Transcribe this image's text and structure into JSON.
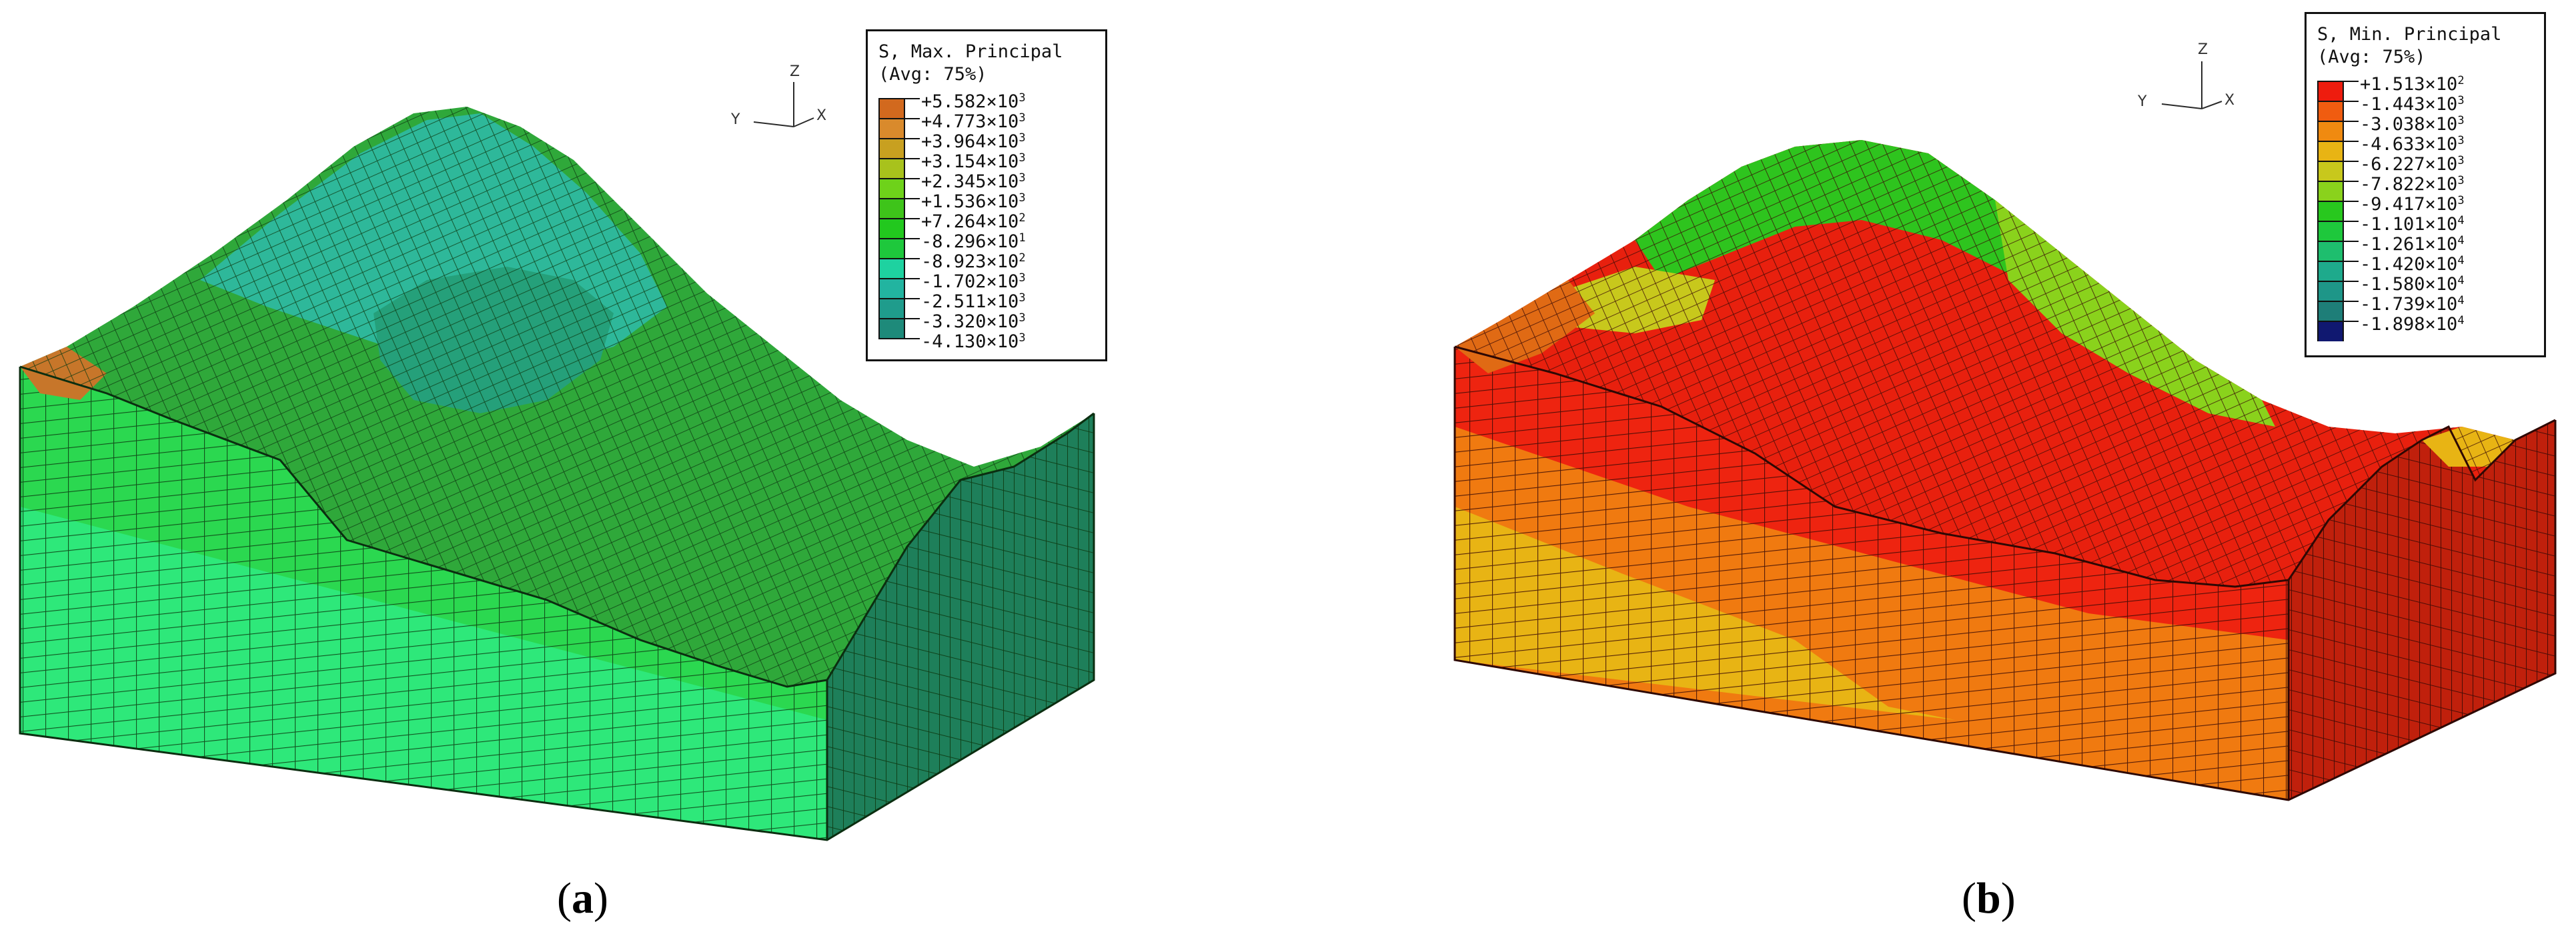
{
  "panels": [
    {
      "caption_letter": "a",
      "legend": {
        "title_line1": "S, Max. Principal",
        "title_line2": "(Avg: 75%)",
        "values": [
          "+5.582",
          "+4.773",
          "+3.964",
          "+3.154",
          "+2.345",
          "+1.536",
          "+7.264",
          "-8.296",
          "-8.923",
          "-1.702",
          "-2.511",
          "-3.320",
          "-4.130"
        ],
        "exponents": [
          "3",
          "3",
          "3",
          "3",
          "3",
          "3",
          "2",
          "1",
          "2",
          "3",
          "3",
          "3",
          "3"
        ],
        "colors": [
          "#d2691e",
          "#d98a2c",
          "#c8a020",
          "#a8c21c",
          "#6ed21a",
          "#3ec41a",
          "#22c81e",
          "#1ec83c",
          "#1ed2a0",
          "#22b4a0",
          "#1f9c8c",
          "#1e8a7a"
        ]
      },
      "triad": {
        "z": "Z",
        "y": "Y",
        "x": "X"
      }
    },
    {
      "caption_letter": "b",
      "legend": {
        "title_line1": "S, Min. Principal",
        "title_line2": "(Avg: 75%)",
        "values": [
          "+1.513",
          "-1.443",
          "-3.038",
          "-4.633",
          "-6.227",
          "-7.822",
          "-9.417",
          "-1.101",
          "-1.261",
          "-1.420",
          "-1.580",
          "-1.739",
          "-1.898"
        ],
        "exponents": [
          "2",
          "3",
          "3",
          "3",
          "3",
          "3",
          "3",
          "4",
          "4",
          "4",
          "4",
          "4",
          "4"
        ],
        "colors": [
          "#ee1c0e",
          "#f05c10",
          "#f08a10",
          "#e8b414",
          "#c8c81c",
          "#8ad21c",
          "#28c81e",
          "#1ec83c",
          "#1ebe6e",
          "#1eaa8c",
          "#1e9688",
          "#1e7e78",
          "#101870"
        ]
      },
      "triad": {
        "z": "Z",
        "y": "Y",
        "x": "X"
      }
    }
  ],
  "x_sign": "×",
  "base": "10"
}
